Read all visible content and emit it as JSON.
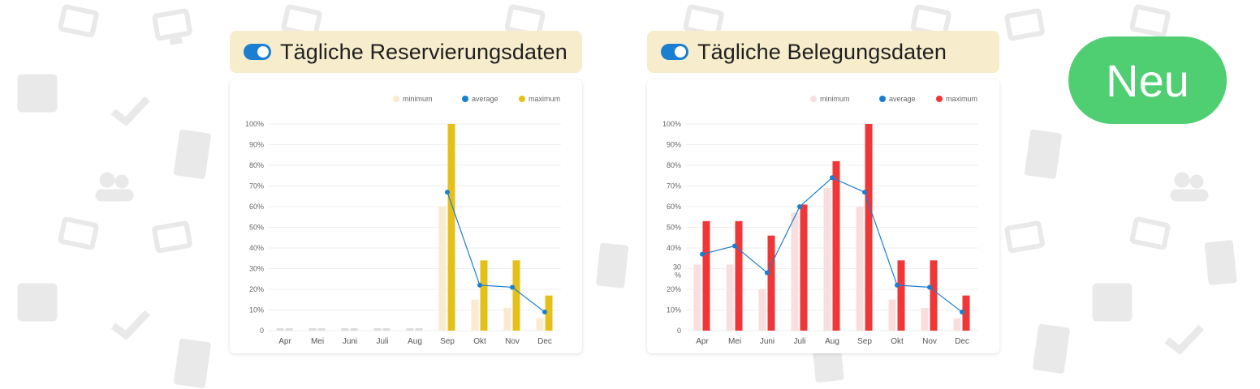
{
  "panels": [
    {
      "title": "Tägliche Reservierungsdaten",
      "chart_data": {
        "type": "bar",
        "categories": [
          "Apr",
          "Mei",
          "Juni",
          "Juli",
          "Aug",
          "Sep",
          "Okt",
          "Nov",
          "Dec"
        ],
        "series": [
          {
            "name": "minimum",
            "kind": "bar",
            "color": "#f8ebcf",
            "values": [
              1,
              1,
              1,
              1,
              1,
              60,
              15,
              11,
              6
            ]
          },
          {
            "name": "average",
            "kind": "line",
            "color": "#1a7fd0",
            "values": [
              null,
              null,
              null,
              null,
              null,
              67,
              22,
              21,
              9
            ]
          },
          {
            "name": "maximum",
            "kind": "bar",
            "color": "#e6c01a",
            "values": [
              1,
              1,
              1,
              1,
              1,
              100,
              34,
              34,
              17
            ]
          }
        ],
        "y_ticks": [
          "0",
          "10%",
          "20%",
          "30%",
          "40%",
          "50%",
          "60%",
          "70%",
          "80%",
          "90%",
          "100%"
        ],
        "ylim": [
          0,
          100
        ],
        "legend": "top-right",
        "grid": true,
        "zero_color": "#dddddd"
      }
    },
    {
      "title": "Tägliche Belegungsdaten",
      "chart_data": {
        "type": "bar",
        "categories": [
          "Apr",
          "Mei",
          "Juni",
          "Juli",
          "Aug",
          "Sep",
          "Okt",
          "Nov",
          "Dec"
        ],
        "series": [
          {
            "name": "minimum",
            "kind": "bar",
            "color": "#f8dede",
            "values": [
              32,
              32,
              20,
              57,
              69,
              60,
              15,
              11,
              6
            ]
          },
          {
            "name": "average",
            "kind": "line",
            "color": "#1a7fd0",
            "values": [
              37,
              41,
              28,
              60,
              74,
              67,
              22,
              21,
              9
            ]
          },
          {
            "name": "maximum",
            "kind": "bar",
            "color": "#f03737",
            "values": [
              53,
              53,
              46,
              61,
              82,
              100,
              34,
              34,
              17
            ]
          }
        ],
        "y_ticks": [
          "0",
          "10%",
          "20%",
          "30\n%",
          "40%",
          "50%",
          "60%",
          "70%",
          "80%",
          "90%",
          "100%"
        ],
        "ylim": [
          0,
          100
        ],
        "legend": "top-right",
        "grid": true,
        "zero_color": "#dddddd"
      }
    }
  ],
  "neu_button": "Neu",
  "bg_icons": [
    "sofa-icon",
    "monitor-icon",
    "calendar-icon",
    "check-icon",
    "building-icon",
    "people-icon"
  ]
}
